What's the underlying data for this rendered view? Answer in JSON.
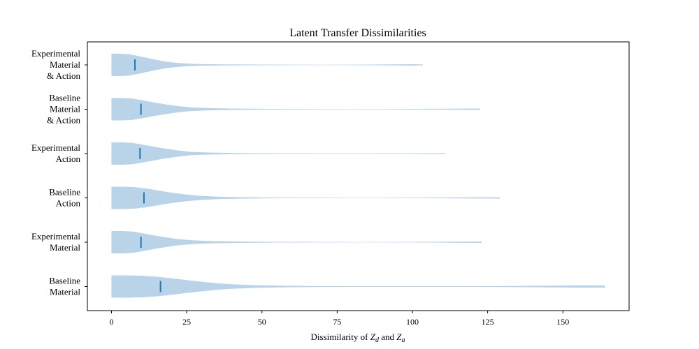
{
  "chart_data": {
    "type": "violin",
    "orientation": "horizontal",
    "title": "Latent Transfer Dissimilarities",
    "xlabel": {
      "prefix": "Dissimilarity of ",
      "sym1": "Z",
      "sub1": "d",
      "middle": " and ",
      "sym2": "Z",
      "sub2": "a"
    },
    "xlim": [
      -8,
      172
    ],
    "xticks": [
      0,
      25,
      50,
      75,
      100,
      125,
      150
    ],
    "xtick_labels": [
      "0",
      "25",
      "50",
      "75",
      "100",
      "125",
      "150"
    ],
    "violin_color": "#b9d4e8",
    "median_color": "#1f77b4",
    "categories": [
      {
        "label_lines": [
          "Experimental",
          "Material",
          "& Action"
        ],
        "min": 0,
        "median": 7.8,
        "max": 103.5,
        "profile": [
          [
            0,
            1.0
          ],
          [
            3,
            1.0
          ],
          [
            6,
            0.95
          ],
          [
            9,
            0.8
          ],
          [
            12,
            0.62
          ],
          [
            15,
            0.45
          ],
          [
            18,
            0.3
          ],
          [
            21,
            0.2
          ],
          [
            25,
            0.12
          ],
          [
            30,
            0.07
          ],
          [
            38,
            0.045
          ],
          [
            50,
            0.03
          ],
          [
            60,
            0.022
          ],
          [
            70,
            0.015
          ],
          [
            80,
            0.02
          ],
          [
            90,
            0.04
          ],
          [
            100,
            0.06
          ],
          [
            103.5,
            0.04
          ]
        ]
      },
      {
        "label_lines": [
          "Baseline",
          "Material",
          "& Action"
        ],
        "min": 0,
        "median": 9.8,
        "max": 122.5,
        "profile": [
          [
            0,
            1.0
          ],
          [
            4,
            1.0
          ],
          [
            7,
            0.95
          ],
          [
            10,
            0.82
          ],
          [
            14,
            0.62
          ],
          [
            18,
            0.44
          ],
          [
            22,
            0.28
          ],
          [
            26,
            0.17
          ],
          [
            32,
            0.1
          ],
          [
            40,
            0.06
          ],
          [
            52,
            0.035
          ],
          [
            65,
            0.02
          ],
          [
            80,
            0.015
          ],
          [
            95,
            0.022
          ],
          [
            110,
            0.045
          ],
          [
            122.5,
            0.06
          ]
        ]
      },
      {
        "label_lines": [
          "Experimental",
          "Action"
        ],
        "min": 0,
        "median": 9.5,
        "max": 111.0,
        "profile": [
          [
            0,
            1.0
          ],
          [
            4,
            1.0
          ],
          [
            7,
            0.95
          ],
          [
            10,
            0.82
          ],
          [
            14,
            0.62
          ],
          [
            18,
            0.44
          ],
          [
            22,
            0.28
          ],
          [
            26,
            0.16
          ],
          [
            32,
            0.09
          ],
          [
            42,
            0.05
          ],
          [
            55,
            0.03
          ],
          [
            70,
            0.02
          ],
          [
            85,
            0.02
          ],
          [
            100,
            0.03
          ],
          [
            111,
            0.04
          ]
        ]
      },
      {
        "label_lines": [
          "Baseline",
          "Action"
        ],
        "min": 0,
        "median": 10.8,
        "max": 129.0,
        "profile": [
          [
            0,
            1.0
          ],
          [
            4,
            1.0
          ],
          [
            8,
            0.95
          ],
          [
            12,
            0.83
          ],
          [
            16,
            0.64
          ],
          [
            20,
            0.46
          ],
          [
            25,
            0.3
          ],
          [
            30,
            0.18
          ],
          [
            36,
            0.1
          ],
          [
            44,
            0.06
          ],
          [
            55,
            0.035
          ],
          [
            70,
            0.02
          ],
          [
            85,
            0.018
          ],
          [
            100,
            0.025
          ],
          [
            115,
            0.045
          ],
          [
            129,
            0.06
          ]
        ]
      },
      {
        "label_lines": [
          "Experimental",
          "Material"
        ],
        "min": 0,
        "median": 9.8,
        "max": 123.0,
        "profile": [
          [
            0,
            1.0
          ],
          [
            4,
            1.0
          ],
          [
            7,
            0.95
          ],
          [
            10,
            0.82
          ],
          [
            14,
            0.62
          ],
          [
            18,
            0.44
          ],
          [
            22,
            0.28
          ],
          [
            27,
            0.17
          ],
          [
            33,
            0.1
          ],
          [
            42,
            0.06
          ],
          [
            55,
            0.035
          ],
          [
            70,
            0.02
          ],
          [
            85,
            0.016
          ],
          [
            100,
            0.025
          ],
          [
            112,
            0.045
          ],
          [
            123,
            0.06
          ]
        ]
      },
      {
        "label_lines": [
          "Baseline",
          "Material"
        ],
        "min": 0,
        "median": 16.3,
        "max": 164.0,
        "profile": [
          [
            0,
            1.0
          ],
          [
            5,
            1.0
          ],
          [
            10,
            0.97
          ],
          [
            15,
            0.88
          ],
          [
            20,
            0.74
          ],
          [
            25,
            0.58
          ],
          [
            30,
            0.43
          ],
          [
            35,
            0.3
          ],
          [
            40,
            0.2
          ],
          [
            48,
            0.12
          ],
          [
            58,
            0.07
          ],
          [
            70,
            0.04
          ],
          [
            85,
            0.03
          ],
          [
            100,
            0.028
          ],
          [
            120,
            0.035
          ],
          [
            140,
            0.06
          ],
          [
            155,
            0.1
          ],
          [
            164,
            0.1
          ]
        ]
      }
    ]
  }
}
